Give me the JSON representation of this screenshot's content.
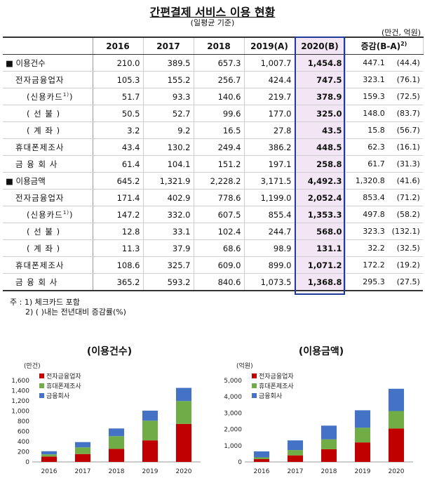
{
  "title": "간편결제 서비스 이용 현황",
  "subtitle": "(일평균 기준)",
  "unit": "(만건, 억원)",
  "table": {
    "headers": [
      "",
      "2016",
      "2017",
      "2018",
      "2019(A)",
      "2020(B)",
      "증감(B-A)"
    ],
    "header_sup": "2)",
    "rows": [
      {
        "label": "■ 이용건수",
        "level": 1,
        "values": [
          "210.0",
          "389.5",
          "657.3",
          "1,007.7",
          "1,454.8"
        ],
        "change": "447.1",
        "pct": "(44.4)"
      },
      {
        "label": "전자금융업자",
        "level": 2,
        "values": [
          "105.3",
          "155.2",
          "256.7",
          "424.4",
          "747.5"
        ],
        "change": "323.1",
        "pct": "(76.1)"
      },
      {
        "label": "(신용카드",
        "sup": "1)",
        "label_end": ")",
        "level": 3,
        "values": [
          "51.7",
          "93.3",
          "140.6",
          "219.7",
          "378.9"
        ],
        "change": "159.3",
        "pct": "(72.5)"
      },
      {
        "label": "( 선  불 )",
        "level": 3,
        "values": [
          "50.5",
          "52.7",
          "99.6",
          "177.0",
          "325.0"
        ],
        "change": "148.0",
        "pct": "(83.7)"
      },
      {
        "label": "( 계  좌 )",
        "level": 3,
        "values": [
          "3.2",
          "9.2",
          "16.5",
          "27.8",
          "43.5"
        ],
        "change": "15.8",
        "pct": "(56.7)"
      },
      {
        "label": "휴대폰제조사",
        "level": 2,
        "values": [
          "43.4",
          "130.2",
          "249.4",
          "386.2",
          "448.5"
        ],
        "change": "62.3",
        "pct": "(16.1)"
      },
      {
        "label": "금 융 회 사",
        "level": 2,
        "values": [
          "61.4",
          "104.1",
          "151.2",
          "197.1",
          "258.8"
        ],
        "change": "61.7",
        "pct": "(31.3)"
      },
      {
        "label": "■ 이용금액",
        "level": 1,
        "values": [
          "645.2",
          "1,321.9",
          "2,228.2",
          "3,171.5",
          "4,492.3"
        ],
        "change": "1,320.8",
        "pct": "(41.6)"
      },
      {
        "label": "전자금융업자",
        "level": 2,
        "values": [
          "171.4",
          "402.9",
          "778.6",
          "1,199.0",
          "2,052.4"
        ],
        "change": "853.4",
        "pct": "(71.2)"
      },
      {
        "label": "(신용카드",
        "sup": "1)",
        "label_end": ")",
        "level": 3,
        "values": [
          "147.2",
          "332.0",
          "607.5",
          "855.4",
          "1,353.3"
        ],
        "change": "497.8",
        "pct": "(58.2)"
      },
      {
        "label": "( 선  불 )",
        "level": 3,
        "values": [
          "12.8",
          "33.1",
          "102.4",
          "244.7",
          "568.0"
        ],
        "change": "323.3",
        "pct": "(132.1)"
      },
      {
        "label": "( 계  좌 )",
        "level": 3,
        "values": [
          "11.3",
          "37.9",
          "68.6",
          "98.9",
          "131.1"
        ],
        "change": "32.2",
        "pct": "(32.5)"
      },
      {
        "label": "휴대폰제조사",
        "level": 2,
        "values": [
          "108.6",
          "325.7",
          "609.0",
          "899.0",
          "1,071.2"
        ],
        "change": "172.2",
        "pct": "(19.2)"
      },
      {
        "label": "금 융 회 사",
        "level": 2,
        "values": [
          "365.2",
          "593.2",
          "840.6",
          "1,073.5",
          "1,368.8"
        ],
        "change": "295.3",
        "pct": "(27.5)"
      }
    ]
  },
  "notes": {
    "line1": "주 : 1) 체크카드 포함",
    "line2": "2) (  )내는 전년대비 증감률(%)"
  },
  "chart_data": [
    {
      "type": "bar",
      "stacked": true,
      "title": "(이용건수)",
      "unit_label": "(만건)",
      "categories": [
        "2016",
        "2017",
        "2018",
        "2019",
        "2020"
      ],
      "ylim": [
        0,
        1600
      ],
      "yticks": [
        0,
        200,
        400,
        600,
        800,
        1000,
        1200,
        1400,
        1600
      ],
      "ytick_labels": [
        "0",
        "200",
        "400",
        "600",
        "800",
        "1,000",
        "1,200",
        "1,400",
        "1,600"
      ],
      "series": [
        {
          "name": "전자금융업자",
          "color": "#c00000",
          "values": [
            105.3,
            155.2,
            256.7,
            424.4,
            747.5
          ]
        },
        {
          "name": "휴대폰제조사",
          "color": "#70ad47",
          "values": [
            43.4,
            130.2,
            249.4,
            386.2,
            448.5
          ]
        },
        {
          "name": "금융회사",
          "color": "#4472c4",
          "values": [
            61.4,
            104.1,
            151.2,
            197.1,
            258.8
          ]
        }
      ],
      "legend": "top-left"
    },
    {
      "type": "bar",
      "stacked": true,
      "title": "(이용금액)",
      "unit_label": "(억원)",
      "categories": [
        "2016",
        "2017",
        "2018",
        "2019",
        "2020"
      ],
      "ylim": [
        0,
        5000
      ],
      "yticks": [
        0,
        1000,
        2000,
        3000,
        4000,
        5000
      ],
      "ytick_labels": [
        "0",
        "1,000",
        "2,000",
        "3,000",
        "4,000",
        "5,000"
      ],
      "series": [
        {
          "name": "전자금융업자",
          "color": "#c00000",
          "values": [
            171.4,
            402.9,
            778.6,
            1199.0,
            2052.4
          ]
        },
        {
          "name": "휴대폰제조사",
          "color": "#70ad47",
          "values": [
            108.6,
            325.7,
            609.0,
            899.0,
            1071.2
          ]
        },
        {
          "name": "금융회사",
          "color": "#4472c4",
          "values": [
            365.2,
            593.2,
            840.6,
            1073.5,
            1368.8
          ]
        }
      ],
      "legend": "top-left"
    }
  ]
}
